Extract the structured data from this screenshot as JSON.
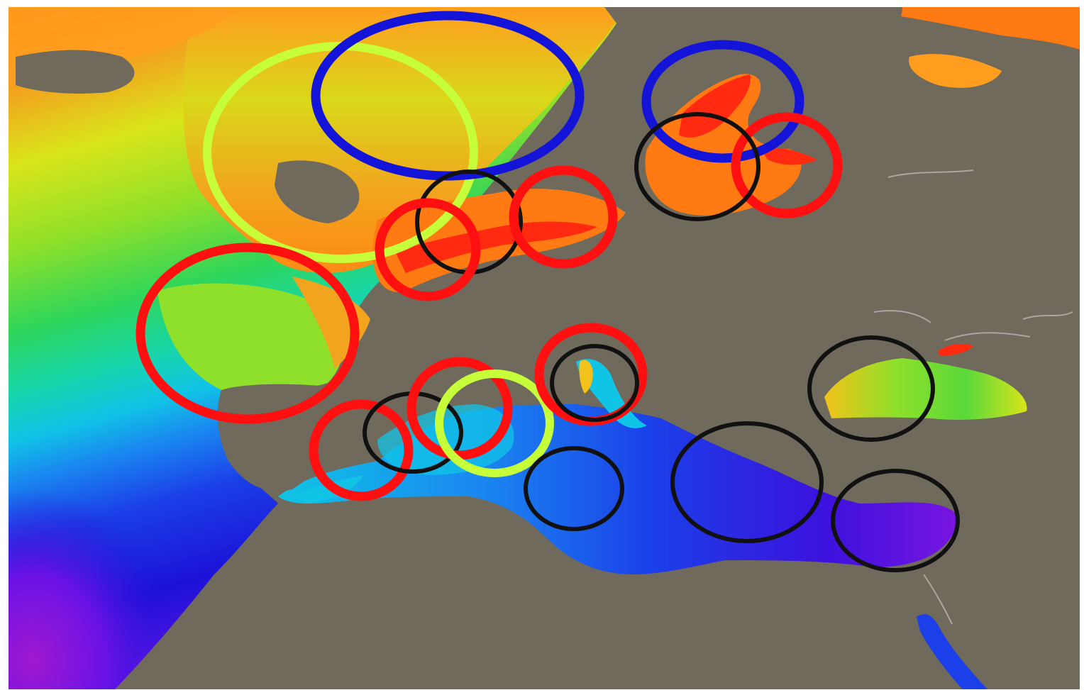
{
  "map": {
    "colors": {
      "land": "#6f6a5c",
      "border": "#ffffff",
      "scale": [
        "#ff2a10",
        "#ff7a12",
        "#ff9d1e",
        "#f2c21a",
        "#d9e51a",
        "#8fe02a",
        "#2fd65a",
        "#18d6a6",
        "#10c4e6",
        "#1a86f0",
        "#1b3fe8",
        "#1c12d8",
        "#6a12e6",
        "#a018d0"
      ]
    },
    "markers": [
      {
        "id": "lime-circle-north-atlantic",
        "color": "#c6ff3a"
      },
      {
        "id": "blue-circle-north-sea",
        "color": "#1414d8"
      },
      {
        "id": "blue-circle-baltic",
        "color": "#1414d8"
      },
      {
        "id": "red-circle-baltic-east",
        "color": "#ff1010"
      },
      {
        "id": "black-circle-baltic",
        "color": "#111111"
      },
      {
        "id": "black-circle-channel",
        "color": "#111111"
      },
      {
        "id": "red-circle-channel-west",
        "color": "#ff1010"
      },
      {
        "id": "red-circle-channel-east",
        "color": "#ff1010"
      },
      {
        "id": "red-circle-biscay",
        "color": "#ff1010"
      },
      {
        "id": "red-circle-alboran",
        "color": "#ff1010"
      },
      {
        "id": "black-circle-alboran",
        "color": "#111111"
      },
      {
        "id": "red-circle-balearic",
        "color": "#ff1010"
      },
      {
        "id": "lime-circle-balearic",
        "color": "#c6ff3a"
      },
      {
        "id": "red-circle-ligurian",
        "color": "#ff1010"
      },
      {
        "id": "black-circle-ligurian",
        "color": "#111111"
      },
      {
        "id": "black-circle-black-sea",
        "color": "#111111"
      },
      {
        "id": "black-circle-sicily",
        "color": "#111111"
      },
      {
        "id": "black-circle-aegean",
        "color": "#111111"
      },
      {
        "id": "black-circle-levant",
        "color": "#111111"
      }
    ]
  }
}
